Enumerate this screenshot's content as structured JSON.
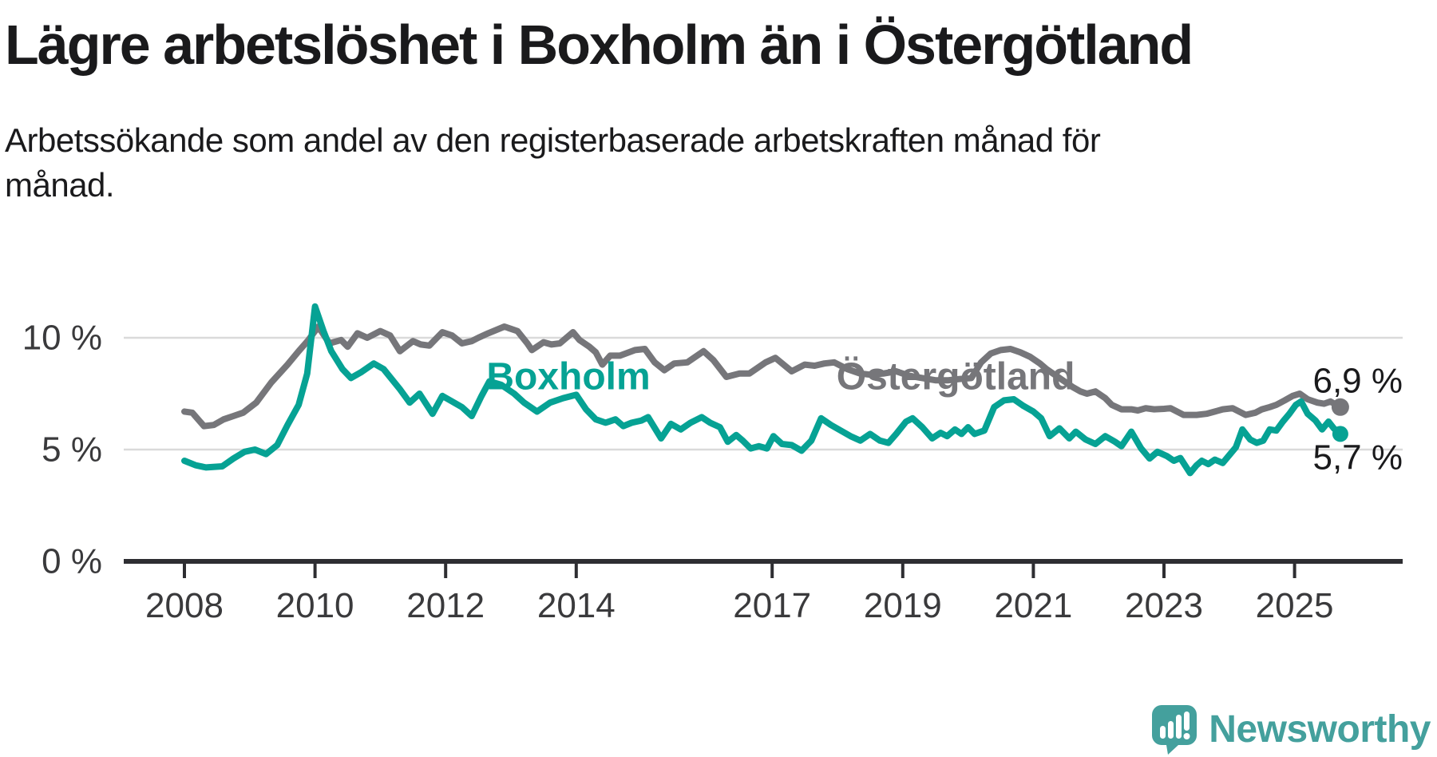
{
  "header": {
    "title": "Lägre arbetslöshet i Boxholm än i Östergötland",
    "subtitle": "Arbetssökande som andel av den registerbaserade arbetskraften månad för månad."
  },
  "footer": {
    "brand": "Newsworthy"
  },
  "colors": {
    "boxholm": "#06A294",
    "ostergotland": "#76767A",
    "text_dark": "#1A1A1C",
    "axis_text": "#3A3A3C",
    "gridline": "#DADADA",
    "axis_line": "#2E2E32",
    "logo_teal": "#44A09D"
  },
  "chart_data": {
    "type": "line",
    "title": "Lägre arbetslöshet i Boxholm än i Östergötland",
    "unit": "%",
    "grid": "horizontal",
    "legend_position": "inline-labels",
    "x_range": [
      2008.0,
      2025.7
    ],
    "ylim": [
      0,
      13
    ],
    "x_ticks": [
      {
        "label": "2008",
        "year": 2008
      },
      {
        "label": "2010",
        "year": 2010
      },
      {
        "label": "2012",
        "year": 2012
      },
      {
        "label": "2014",
        "year": 2014
      },
      {
        "label": "2017",
        "year": 2017
      },
      {
        "label": "2019",
        "year": 2019
      },
      {
        "label": "2021",
        "year": 2021
      },
      {
        "label": "2023",
        "year": 2023
      },
      {
        "label": "2025",
        "year": 2025
      }
    ],
    "y_ticks": [
      {
        "label": "0 %",
        "value": 0
      },
      {
        "label": "5 %",
        "value": 5
      },
      {
        "label": "10 %",
        "value": 10
      }
    ],
    "series": [
      {
        "name": "Boxholm",
        "slug": "boxholm",
        "color": "#06A294",
        "label_pos": {
          "x": 2013.88,
          "y": 8.25
        },
        "end_label": "5,7 %",
        "end_label_y": 4.64,
        "last_value": 5.7,
        "points": [
          [
            2008.0,
            4.5
          ],
          [
            2008.17,
            4.3
          ],
          [
            2008.33,
            4.2
          ],
          [
            2008.58,
            4.25
          ],
          [
            2008.75,
            4.6
          ],
          [
            2008.92,
            4.9
          ],
          [
            2009.08,
            5.0
          ],
          [
            2009.25,
            4.8
          ],
          [
            2009.42,
            5.2
          ],
          [
            2009.58,
            6.1
          ],
          [
            2009.75,
            7.0
          ],
          [
            2009.88,
            8.4
          ],
          [
            2010.0,
            11.4
          ],
          [
            2010.13,
            10.3
          ],
          [
            2010.25,
            9.4
          ],
          [
            2010.42,
            8.6
          ],
          [
            2010.55,
            8.2
          ],
          [
            2010.7,
            8.45
          ],
          [
            2010.9,
            8.85
          ],
          [
            2011.05,
            8.6
          ],
          [
            2011.3,
            7.7
          ],
          [
            2011.45,
            7.1
          ],
          [
            2011.6,
            7.5
          ],
          [
            2011.8,
            6.6
          ],
          [
            2011.95,
            7.4
          ],
          [
            2012.1,
            7.15
          ],
          [
            2012.25,
            6.9
          ],
          [
            2012.4,
            6.5
          ],
          [
            2012.55,
            7.4
          ],
          [
            2012.67,
            8.05
          ],
          [
            2012.85,
            7.9
          ],
          [
            2013.05,
            7.5
          ],
          [
            2013.2,
            7.1
          ],
          [
            2013.4,
            6.7
          ],
          [
            2013.6,
            7.1
          ],
          [
            2013.8,
            7.3
          ],
          [
            2014.0,
            7.45
          ],
          [
            2014.15,
            6.8
          ],
          [
            2014.3,
            6.35
          ],
          [
            2014.45,
            6.2
          ],
          [
            2014.6,
            6.35
          ],
          [
            2014.72,
            6.05
          ],
          [
            2014.85,
            6.2
          ],
          [
            2015.0,
            6.3
          ],
          [
            2015.1,
            6.45
          ],
          [
            2015.3,
            5.5
          ],
          [
            2015.45,
            6.15
          ],
          [
            2015.6,
            5.9
          ],
          [
            2015.75,
            6.2
          ],
          [
            2015.92,
            6.45
          ],
          [
            2016.05,
            6.2
          ],
          [
            2016.2,
            6.0
          ],
          [
            2016.32,
            5.35
          ],
          [
            2016.45,
            5.65
          ],
          [
            2016.55,
            5.4
          ],
          [
            2016.67,
            5.05
          ],
          [
            2016.8,
            5.15
          ],
          [
            2016.92,
            5.05
          ],
          [
            2017.02,
            5.6
          ],
          [
            2017.15,
            5.25
          ],
          [
            2017.3,
            5.2
          ],
          [
            2017.45,
            4.95
          ],
          [
            2017.6,
            5.4
          ],
          [
            2017.75,
            6.4
          ],
          [
            2017.9,
            6.1
          ],
          [
            2018.05,
            5.85
          ],
          [
            2018.2,
            5.6
          ],
          [
            2018.35,
            5.4
          ],
          [
            2018.5,
            5.7
          ],
          [
            2018.65,
            5.4
          ],
          [
            2018.78,
            5.3
          ],
          [
            2018.9,
            5.7
          ],
          [
            2019.05,
            6.25
          ],
          [
            2019.15,
            6.4
          ],
          [
            2019.3,
            6.0
          ],
          [
            2019.45,
            5.5
          ],
          [
            2019.58,
            5.75
          ],
          [
            2019.68,
            5.6
          ],
          [
            2019.8,
            5.9
          ],
          [
            2019.9,
            5.7
          ],
          [
            2020.0,
            6.0
          ],
          [
            2020.1,
            5.7
          ],
          [
            2020.25,
            5.85
          ],
          [
            2020.4,
            6.9
          ],
          [
            2020.55,
            7.2
          ],
          [
            2020.7,
            7.25
          ],
          [
            2020.85,
            6.95
          ],
          [
            2021.0,
            6.7
          ],
          [
            2021.12,
            6.4
          ],
          [
            2021.25,
            5.6
          ],
          [
            2021.4,
            5.95
          ],
          [
            2021.55,
            5.5
          ],
          [
            2021.65,
            5.8
          ],
          [
            2021.8,
            5.45
          ],
          [
            2021.95,
            5.25
          ],
          [
            2022.1,
            5.6
          ],
          [
            2022.25,
            5.35
          ],
          [
            2022.35,
            5.15
          ],
          [
            2022.5,
            5.8
          ],
          [
            2022.65,
            5.05
          ],
          [
            2022.78,
            4.6
          ],
          [
            2022.9,
            4.9
          ],
          [
            2023.05,
            4.7
          ],
          [
            2023.15,
            4.5
          ],
          [
            2023.25,
            4.62
          ],
          [
            2023.4,
            3.95
          ],
          [
            2023.5,
            4.3
          ],
          [
            2023.58,
            4.5
          ],
          [
            2023.68,
            4.35
          ],
          [
            2023.78,
            4.55
          ],
          [
            2023.9,
            4.4
          ],
          [
            2024.0,
            4.75
          ],
          [
            2024.1,
            5.1
          ],
          [
            2024.2,
            5.9
          ],
          [
            2024.32,
            5.45
          ],
          [
            2024.42,
            5.3
          ],
          [
            2024.52,
            5.4
          ],
          [
            2024.62,
            5.9
          ],
          [
            2024.72,
            5.85
          ],
          [
            2024.82,
            6.25
          ],
          [
            2024.92,
            6.6
          ],
          [
            2025.02,
            7.0
          ],
          [
            2025.1,
            7.15
          ],
          [
            2025.2,
            6.6
          ],
          [
            2025.32,
            6.3
          ],
          [
            2025.42,
            5.9
          ],
          [
            2025.52,
            6.25
          ],
          [
            2025.6,
            5.95
          ],
          [
            2025.7,
            5.7
          ]
        ]
      },
      {
        "name": "Östergötland",
        "slug": "ostergotland",
        "color": "#76767A",
        "label_pos": {
          "x": 2019.81,
          "y": 8.25
        },
        "end_label": "6,9 %",
        "end_label_y": 8.07,
        "last_value": 6.9,
        "points": [
          [
            2008.0,
            6.7
          ],
          [
            2008.12,
            6.65
          ],
          [
            2008.3,
            6.05
          ],
          [
            2008.45,
            6.1
          ],
          [
            2008.6,
            6.35
          ],
          [
            2008.75,
            6.5
          ],
          [
            2008.9,
            6.65
          ],
          [
            2009.1,
            7.1
          ],
          [
            2009.33,
            8.0
          ],
          [
            2009.58,
            8.8
          ],
          [
            2009.75,
            9.4
          ],
          [
            2009.9,
            9.9
          ],
          [
            2010.05,
            10.5
          ],
          [
            2010.22,
            9.75
          ],
          [
            2010.4,
            9.9
          ],
          [
            2010.5,
            9.6
          ],
          [
            2010.65,
            10.2
          ],
          [
            2010.8,
            10.0
          ],
          [
            2011.0,
            10.3
          ],
          [
            2011.15,
            10.1
          ],
          [
            2011.3,
            9.4
          ],
          [
            2011.5,
            9.85
          ],
          [
            2011.62,
            9.7
          ],
          [
            2011.75,
            9.65
          ],
          [
            2011.95,
            10.25
          ],
          [
            2012.1,
            10.1
          ],
          [
            2012.25,
            9.75
          ],
          [
            2012.4,
            9.85
          ],
          [
            2012.5,
            10.0
          ],
          [
            2012.65,
            10.2
          ],
          [
            2012.9,
            10.5
          ],
          [
            2013.1,
            10.3
          ],
          [
            2013.25,
            9.75
          ],
          [
            2013.32,
            9.45
          ],
          [
            2013.5,
            9.8
          ],
          [
            2013.62,
            9.7
          ],
          [
            2013.75,
            9.75
          ],
          [
            2013.95,
            10.25
          ],
          [
            2014.05,
            9.9
          ],
          [
            2014.2,
            9.6
          ],
          [
            2014.3,
            9.35
          ],
          [
            2014.4,
            8.8
          ],
          [
            2014.52,
            9.2
          ],
          [
            2014.67,
            9.2
          ],
          [
            2014.9,
            9.45
          ],
          [
            2015.05,
            9.5
          ],
          [
            2015.2,
            8.9
          ],
          [
            2015.35,
            8.55
          ],
          [
            2015.5,
            8.85
          ],
          [
            2015.7,
            8.9
          ],
          [
            2015.95,
            9.4
          ],
          [
            2016.1,
            9.0
          ],
          [
            2016.3,
            8.25
          ],
          [
            2016.5,
            8.4
          ],
          [
            2016.65,
            8.4
          ],
          [
            2016.9,
            8.9
          ],
          [
            2017.05,
            9.1
          ],
          [
            2017.3,
            8.5
          ],
          [
            2017.5,
            8.8
          ],
          [
            2017.65,
            8.75
          ],
          [
            2017.8,
            8.85
          ],
          [
            2017.95,
            8.9
          ],
          [
            2018.15,
            8.6
          ],
          [
            2018.35,
            8.4
          ],
          [
            2018.5,
            8.35
          ],
          [
            2018.7,
            8.4
          ],
          [
            2018.9,
            8.5
          ],
          [
            2019.1,
            8.3
          ],
          [
            2019.3,
            8.2
          ],
          [
            2019.5,
            8.1
          ],
          [
            2019.7,
            8.1
          ],
          [
            2019.85,
            8.15
          ],
          [
            2020.05,
            8.2
          ],
          [
            2020.2,
            8.9
          ],
          [
            2020.35,
            9.3
          ],
          [
            2020.5,
            9.45
          ],
          [
            2020.65,
            9.5
          ],
          [
            2020.8,
            9.35
          ],
          [
            2020.95,
            9.15
          ],
          [
            2021.1,
            8.85
          ],
          [
            2021.2,
            8.6
          ],
          [
            2021.35,
            8.3
          ],
          [
            2021.5,
            8.0
          ],
          [
            2021.6,
            7.8
          ],
          [
            2021.72,
            7.6
          ],
          [
            2021.82,
            7.5
          ],
          [
            2021.95,
            7.6
          ],
          [
            2022.1,
            7.3
          ],
          [
            2022.2,
            7.0
          ],
          [
            2022.35,
            6.8
          ],
          [
            2022.5,
            6.8
          ],
          [
            2022.6,
            6.75
          ],
          [
            2022.72,
            6.85
          ],
          [
            2022.85,
            6.8
          ],
          [
            2023.0,
            6.82
          ],
          [
            2023.1,
            6.85
          ],
          [
            2023.3,
            6.55
          ],
          [
            2023.5,
            6.55
          ],
          [
            2023.65,
            6.6
          ],
          [
            2023.78,
            6.7
          ],
          [
            2023.9,
            6.8
          ],
          [
            2024.05,
            6.85
          ],
          [
            2024.25,
            6.55
          ],
          [
            2024.4,
            6.65
          ],
          [
            2024.5,
            6.8
          ],
          [
            2024.62,
            6.9
          ],
          [
            2024.72,
            7.0
          ],
          [
            2024.85,
            7.2
          ],
          [
            2024.97,
            7.4
          ],
          [
            2025.08,
            7.5
          ],
          [
            2025.2,
            7.25
          ],
          [
            2025.35,
            7.1
          ],
          [
            2025.45,
            7.05
          ],
          [
            2025.55,
            7.15
          ],
          [
            2025.7,
            6.9
          ]
        ]
      }
    ]
  }
}
